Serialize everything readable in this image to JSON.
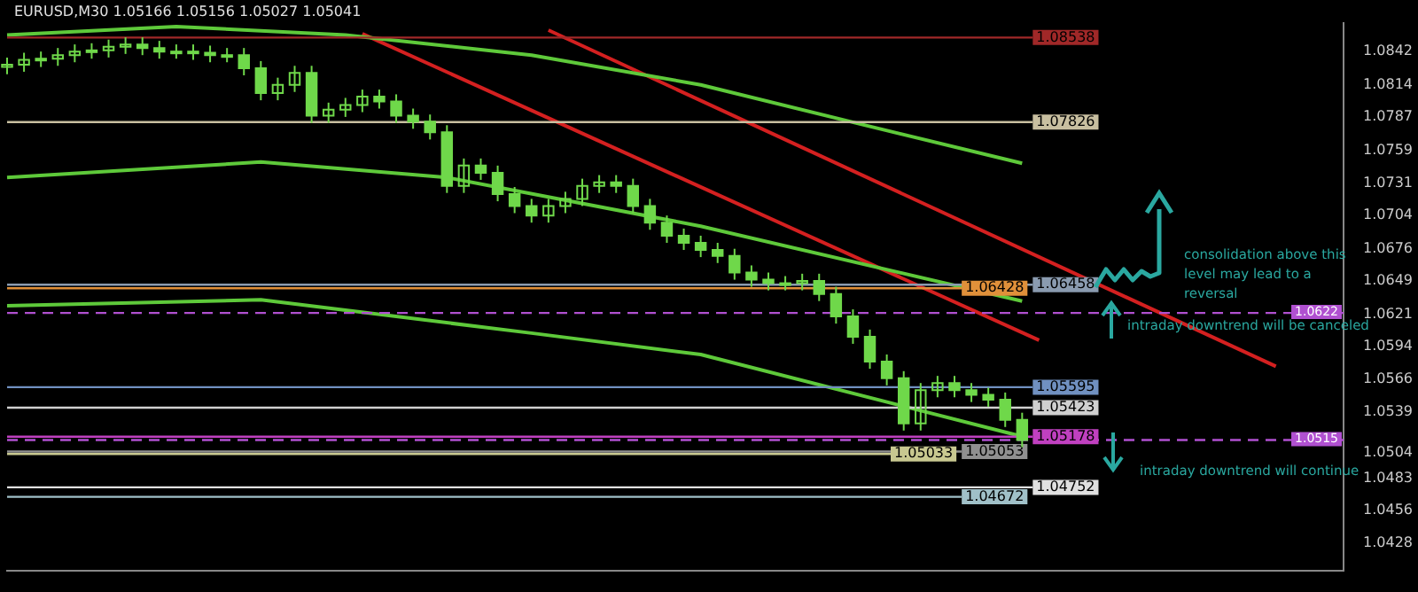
{
  "chart_data": {
    "type": "candlestick",
    "title": "EURUSD,M30 1.05166 1.05156 1.05027 1.05041",
    "categories": [
      null,
      null,
      null,
      null,
      null,
      null,
      null,
      null,
      null,
      null,
      null,
      null,
      null,
      null,
      null,
      null,
      null,
      null,
      null,
      null,
      null,
      null,
      null,
      null,
      null,
      null,
      null,
      null,
      null,
      null,
      null,
      null,
      null,
      null,
      null,
      null,
      null,
      null,
      null,
      null,
      null,
      null,
      null,
      null,
      null,
      null,
      null,
      null,
      null,
      null,
      null,
      null,
      null,
      null,
      null,
      null,
      null,
      null,
      null,
      null,
      null,
      null,
      null,
      null,
      null,
      null,
      null,
      null,
      null,
      null,
      null,
      null,
      null,
      null,
      null,
      null,
      null,
      null,
      null,
      null
    ],
    "color": "#6fd84a",
    "ohlc": [
      [
        1.0829,
        1.0837,
        1.0823,
        1.0831
      ],
      [
        1.0831,
        1.0841,
        1.0825,
        1.0835
      ],
      [
        1.0835,
        1.0842,
        1.0829,
        1.0836
      ],
      [
        1.0836,
        1.0845,
        1.083,
        1.0839
      ],
      [
        1.0839,
        1.0848,
        1.0833,
        1.0842
      ],
      [
        1.0842,
        1.0849,
        1.0836,
        1.0843
      ],
      [
        1.0843,
        1.0852,
        1.0837,
        1.0846
      ],
      [
        1.0846,
        1.0854,
        1.084,
        1.0848
      ],
      [
        1.0848,
        1.0854,
        1.0839,
        1.0845
      ],
      [
        1.0845,
        1.0851,
        1.0836,
        1.0842
      ],
      [
        1.0842,
        1.0848,
        1.0836,
        1.0842
      ],
      [
        1.0842,
        1.0848,
        1.0835,
        1.0841
      ],
      [
        1.0841,
        1.0847,
        1.0833,
        1.0839
      ],
      [
        1.0839,
        1.0845,
        1.0833,
        1.0839
      ],
      [
        1.0839,
        1.0845,
        1.0822,
        1.0828
      ],
      [
        1.0828,
        1.0834,
        1.0801,
        1.0807
      ],
      [
        1.0807,
        1.082,
        1.0801,
        1.0814
      ],
      [
        1.0814,
        1.083,
        1.0808,
        1.0824
      ],
      [
        1.0824,
        1.083,
        1.0782,
        1.0788
      ],
      [
        1.0788,
        1.0799,
        1.0782,
        1.0793
      ],
      [
        1.0793,
        1.0803,
        1.0787,
        1.0797
      ],
      [
        1.0797,
        1.081,
        1.0791,
        1.0804
      ],
      [
        1.0804,
        1.081,
        1.0794,
        1.08
      ],
      [
        1.08,
        1.0806,
        1.0782,
        1.0788
      ],
      [
        1.0788,
        1.0794,
        1.0777,
        1.0783
      ],
      [
        1.0783,
        1.0789,
        1.0768,
        1.0774
      ],
      [
        1.0774,
        1.078,
        1.0723,
        1.0729
      ],
      [
        1.0729,
        1.0752,
        1.0723,
        1.0746
      ],
      [
        1.0746,
        1.0752,
        1.0734,
        1.074
      ],
      [
        1.074,
        1.0746,
        1.0716,
        1.0722
      ],
      [
        1.0722,
        1.0728,
        1.0706,
        1.0712
      ],
      [
        1.0712,
        1.0718,
        1.0698,
        1.0704
      ],
      [
        1.0704,
        1.0718,
        1.0698,
        1.0712
      ],
      [
        1.0712,
        1.0724,
        1.0706,
        1.0718
      ],
      [
        1.0718,
        1.0735,
        1.0712,
        1.0729
      ],
      [
        1.0729,
        1.0738,
        1.0723,
        1.0732
      ],
      [
        1.0732,
        1.0738,
        1.0723,
        1.0729
      ],
      [
        1.0729,
        1.0735,
        1.0706,
        1.0712
      ],
      [
        1.0712,
        1.0718,
        1.0692,
        1.0698
      ],
      [
        1.0698,
        1.0704,
        1.0681,
        1.0687
      ],
      [
        1.0687,
        1.0693,
        1.0675,
        1.0681
      ],
      [
        1.0681,
        1.0687,
        1.0669,
        1.0675
      ],
      [
        1.0675,
        1.0681,
        1.0664,
        1.067
      ],
      [
        1.067,
        1.0676,
        1.065,
        1.0656
      ],
      [
        1.0656,
        1.0662,
        1.0644,
        1.065
      ],
      [
        1.065,
        1.0656,
        1.0641,
        1.0647
      ],
      [
        1.0647,
        1.0653,
        1.0641,
        1.0647
      ],
      [
        1.0647,
        1.0655,
        1.0641,
        1.0649
      ],
      [
        1.0649,
        1.0655,
        1.0632,
        1.0638
      ],
      [
        1.0638,
        1.0644,
        1.0613,
        1.0619
      ],
      [
        1.0619,
        1.0625,
        1.0596,
        1.0602
      ],
      [
        1.0602,
        1.0608,
        1.0575,
        1.0581
      ],
      [
        1.0581,
        1.0587,
        1.0561,
        1.0567
      ],
      [
        1.0567,
        1.0573,
        1.0523,
        1.0529
      ],
      [
        1.0529,
        1.0563,
        1.0523,
        1.0557
      ],
      [
        1.0557,
        1.0569,
        1.0551,
        1.0563
      ],
      [
        1.0563,
        1.0569,
        1.0551,
        1.0557
      ],
      [
        1.0557,
        1.0563,
        1.0547,
        1.0553
      ],
      [
        1.0553,
        1.0559,
        1.0543,
        1.0549
      ],
      [
        1.0549,
        1.0555,
        1.0526,
        1.0532
      ],
      [
        1.0532,
        1.0538,
        1.0509,
        1.0515
      ],
      null,
      null,
      null,
      null,
      null,
      null,
      null,
      null,
      null,
      null,
      null,
      null,
      null,
      null,
      null,
      null,
      null,
      null,
      null
    ],
    "series": [
      {
        "type": "line",
        "color": "#5ec93a",
        "values": [
          1.0856,
          null,
          null,
          null,
          null,
          null,
          null,
          null,
          null,
          null,
          1.0863,
          null,
          null,
          null,
          null,
          null,
          null,
          null,
          null,
          null,
          1.0856,
          null,
          null,
          null,
          null,
          null,
          null,
          null,
          null,
          null,
          null,
          1.0839,
          null,
          null,
          null,
          null,
          null,
          null,
          null,
          null,
          null,
          1.0814,
          null,
          null,
          null,
          null,
          null,
          null,
          null,
          null,
          null,
          1.0779,
          null,
          null,
          null,
          null,
          null,
          null,
          null,
          null,
          1.0748,
          null,
          null,
          null,
          null,
          null,
          null,
          null,
          null,
          null,
          null,
          null,
          null,
          null,
          null,
          null,
          null,
          null,
          null,
          null
        ]
      },
      {
        "type": "line",
        "color": "#5ec93a",
        "values": [
          1.0736,
          null,
          null,
          null,
          null,
          null,
          null,
          null,
          null,
          null,
          null,
          null,
          null,
          null,
          null,
          1.0749,
          null,
          null,
          null,
          null,
          null,
          null,
          null,
          null,
          null,
          null,
          1.0736,
          null,
          null,
          null,
          null,
          null,
          null,
          null,
          null,
          null,
          null,
          null,
          null,
          null,
          null,
          1.0695,
          null,
          null,
          null,
          null,
          null,
          null,
          null,
          null,
          null,
          null,
          null,
          null,
          null,
          null,
          null,
          null,
          null,
          null,
          1.0632,
          null,
          null,
          null,
          null,
          null,
          null,
          null,
          null,
          null,
          null,
          null,
          null,
          null,
          null,
          null,
          null,
          null,
          null,
          null
        ]
      },
      {
        "type": "line",
        "color": "#5ec93a",
        "values": [
          1.0628,
          null,
          null,
          null,
          null,
          null,
          null,
          null,
          null,
          null,
          null,
          null,
          null,
          null,
          null,
          1.0633,
          null,
          null,
          null,
          null,
          null,
          null,
          null,
          null,
          null,
          null,
          null,
          null,
          null,
          null,
          null,
          1.0605,
          null,
          null,
          null,
          null,
          null,
          null,
          null,
          null,
          null,
          1.0587,
          null,
          null,
          null,
          null,
          null,
          null,
          null,
          null,
          null,
          null,
          null,
          null,
          null,
          null,
          null,
          null,
          null,
          null,
          1.0518,
          null,
          null,
          null,
          null,
          null,
          null,
          null,
          null,
          null,
          null,
          null,
          null,
          null,
          null,
          null,
          null,
          null,
          null,
          null
        ]
      },
      {
        "type": "line",
        "color": "#d42020",
        "values": [
          null,
          null,
          null,
          null,
          null,
          null,
          null,
          null,
          null,
          null,
          null,
          null,
          null,
          null,
          null,
          null,
          null,
          null,
          null,
          null,
          null,
          1.0857,
          null,
          null,
          null,
          null,
          null,
          null,
          null,
          null,
          null,
          null,
          null,
          null,
          null,
          null,
          null,
          null,
          null,
          null,
          null,
          null,
          null,
          null,
          null,
          null,
          null,
          null,
          null,
          null,
          null,
          null,
          null,
          null,
          null,
          null,
          null,
          null,
          null,
          null,
          null,
          1.0599,
          null,
          null,
          null,
          null,
          null,
          null,
          null,
          null,
          null,
          null,
          null,
          null,
          null,
          null,
          null,
          null,
          null,
          null
        ]
      },
      {
        "type": "line",
        "color": "#d42020",
        "values": [
          null,
          null,
          null,
          null,
          null,
          null,
          null,
          null,
          null,
          null,
          null,
          null,
          null,
          null,
          null,
          null,
          null,
          null,
          null,
          null,
          null,
          null,
          null,
          null,
          null,
          null,
          null,
          null,
          null,
          null,
          null,
          null,
          1.086,
          null,
          null,
          null,
          null,
          null,
          null,
          null,
          null,
          null,
          null,
          null,
          null,
          null,
          null,
          null,
          null,
          null,
          null,
          null,
          null,
          null,
          null,
          null,
          null,
          null,
          null,
          null,
          null,
          null,
          null,
          null,
          null,
          null,
          null,
          null,
          null,
          null,
          null,
          null,
          null,
          null,
          null,
          1.0577,
          null,
          null,
          null,
          null
        ]
      }
    ],
    "ylim": [
      1.0405,
      1.0866
    ],
    "yticks": [
      1.0842,
      1.0814,
      1.0787,
      1.0759,
      1.0731,
      1.0704,
      1.0676,
      1.0649,
      1.0621,
      1.0594,
      1.0566,
      1.0539,
      1.0504,
      1.0483,
      1.0456,
      1.0428
    ],
    "tick_labels": "y",
    "ref_lines": [
      {
        "axis": "y",
        "value": 1.08538,
        "label": "1.08538",
        "color": "#a02828"
      },
      {
        "axis": "y",
        "value": 1.07826,
        "label": "1.07826",
        "color": "#c8bfa0"
      },
      {
        "axis": "y",
        "value": 1.06458,
        "label": "1.06458",
        "color": "#8a9bb0"
      },
      {
        "axis": "y",
        "value": 1.06428,
        "label": "1.06428",
        "color": "#e0903a"
      },
      {
        "axis": "y",
        "value": 1.0622,
        "label": "1.0622",
        "color": "#b050d0",
        "line_style": "dashed"
      },
      {
        "axis": "y",
        "value": 1.05595,
        "label": "1.05595",
        "color": "#7090c0"
      },
      {
        "axis": "y",
        "value": 1.05423,
        "label": "1.05423",
        "color": "#d0d0d0"
      },
      {
        "axis": "y",
        "value": 1.05178,
        "label": "1.05178",
        "color": "#c040c0"
      },
      {
        "axis": "y",
        "value": 1.0515,
        "label": "1.0515",
        "color": "#b050d0",
        "line_style": "dashed"
      },
      {
        "axis": "y",
        "value": 1.05053,
        "label": "1.05053",
        "color": "#909090"
      },
      {
        "axis": "y",
        "value": 1.05033,
        "label": "1.05033",
        "color": "#c8c890"
      },
      {
        "axis": "y",
        "value": 1.04752,
        "label": "1.04752",
        "color": "#e0e0e0"
      },
      {
        "axis": "y",
        "value": 1.04672,
        "label": "1.04672",
        "color": "#a0c0c8"
      }
    ],
    "annotations": [
      "consolidation above this level may lead to a reversal",
      "intraday downtrend will be canceled",
      "intraday downtrend will continue"
    ],
    "marker": "none"
  }
}
